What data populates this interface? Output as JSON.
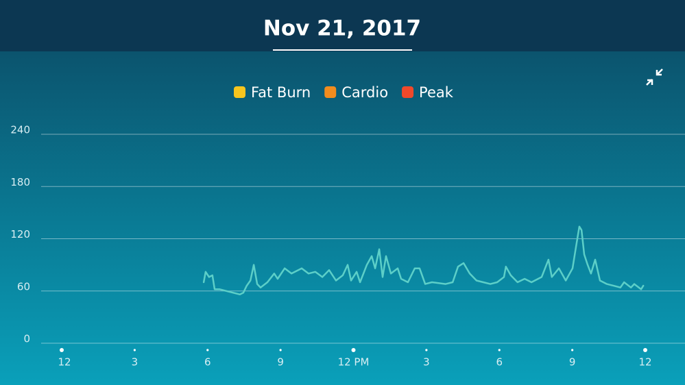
{
  "chart_data": {
    "type": "line",
    "title": "Nov 21, 2017",
    "zones": [
      {
        "name": "Fat Burn",
        "color": "#f7c51e"
      },
      {
        "name": "Cardio",
        "color": "#f28c1e"
      },
      {
        "name": "Peak",
        "color": "#f0492b"
      }
    ],
    "xlim": [
      0,
      24
    ],
    "xticks": [
      {
        "value": 0,
        "label": "12"
      },
      3,
      6,
      9,
      {
        "value": 12,
        "label": "12 PM"
      },
      {
        "value": 15,
        "label": "3"
      },
      {
        "value": 18,
        "label": "6"
      },
      {
        "value": 21,
        "label": "9"
      },
      {
        "value": 24,
        "label": "12"
      }
    ],
    "ylim": [
      0,
      240
    ],
    "yticks": [
      0,
      60,
      120,
      180,
      240
    ],
    "grid": true,
    "series": [
      {
        "color": "#5ccfc8",
        "x": [
          5.84,
          5.92,
          6.06,
          6.2,
          6.29,
          6.49,
          6.77,
          7.05,
          7.33,
          7.47,
          7.61,
          7.76,
          7.9,
          8.04,
          8.18,
          8.46,
          8.74,
          8.88,
          9.17,
          9.45,
          9.87,
          10.15,
          10.43,
          10.72,
          11.0,
          11.28,
          11.56,
          11.76,
          11.9,
          12.13,
          12.27,
          12.55,
          12.75,
          12.89,
          13.06,
          13.2,
          13.34,
          13.54,
          13.82,
          13.96,
          14.24,
          14.52,
          14.72,
          14.95,
          15.23,
          15.79,
          16.08,
          16.3,
          16.53,
          16.78,
          17.06,
          17.34,
          17.63,
          17.91,
          18.19,
          18.27,
          18.47,
          18.75,
          19.04,
          19.32,
          19.74,
          20.02,
          20.16,
          20.45,
          20.73,
          21.01,
          21.15,
          21.29,
          21.38,
          21.49,
          21.63,
          21.77,
          21.94,
          22.14,
          22.42,
          22.7,
          22.98,
          23.13,
          23.41,
          23.55,
          23.83,
          23.92
        ],
        "values": [
          70,
          82,
          76,
          78,
          62,
          62,
          60,
          58,
          56,
          58,
          66,
          72,
          90,
          68,
          64,
          70,
          80,
          74,
          86,
          80,
          86,
          80,
          82,
          76,
          84,
          72,
          78,
          90,
          72,
          82,
          70,
          90,
          100,
          86,
          108,
          76,
          100,
          80,
          86,
          74,
          70,
          86,
          86,
          68,
          70,
          68,
          70,
          88,
          92,
          80,
          72,
          70,
          68,
          70,
          76,
          88,
          78,
          70,
          74,
          70,
          76,
          96,
          76,
          86,
          72,
          86,
          110,
          134,
          130,
          102,
          90,
          80,
          96,
          72,
          68,
          66,
          64,
          70,
          64,
          68,
          62,
          66
        ]
      }
    ]
  }
}
